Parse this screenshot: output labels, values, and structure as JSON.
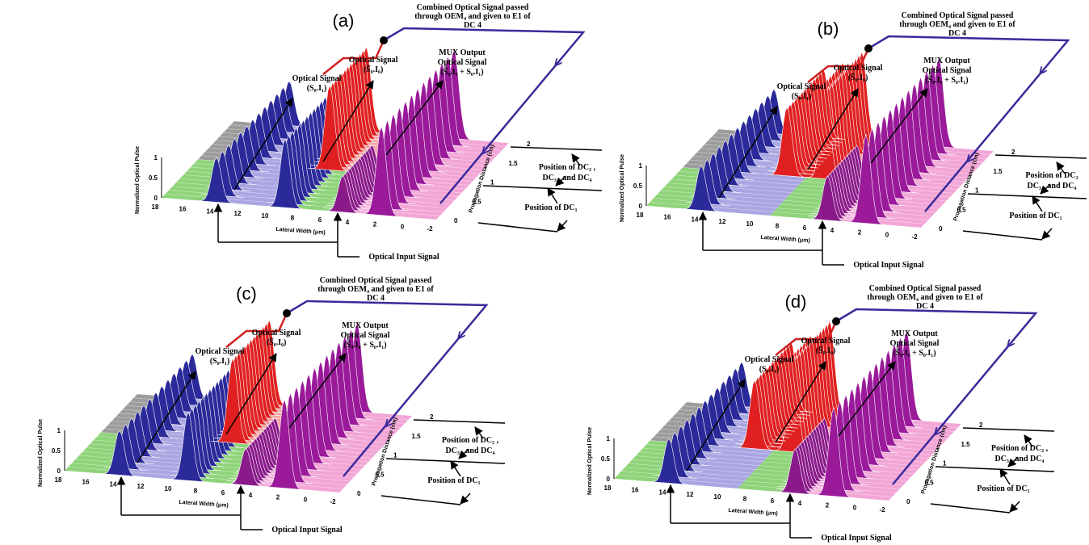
{
  "panels": [
    {
      "label": "(a)",
      "combined": [
        "Combined Optical Signal passed",
        "through OEM₄ and given to E1 of",
        "DC 4"
      ],
      "sig1": [
        "Optical Signal",
        "(S₀.I₁)"
      ],
      "sig0": [
        "Optical Signal",
        "(S̅₀.I₀)"
      ],
      "mux": [
        "MUX Output",
        "Optical Signal",
        "(S̅₀.I₀ + S₀.I₁)"
      ],
      "dc234": [
        "Position of DC₂ ,",
        "DC₃ , and DC₄"
      ],
      "dc1": "Position of DC₁",
      "input": "Optical Input Signal",
      "zlabel": "Normalized Optical Pulse",
      "xlabel": "Lateral Width (μm)",
      "ylabel": "Propagation Distance (cm)",
      "zticks": [
        0,
        0.5,
        1
      ],
      "xticks": [
        18,
        16,
        14,
        12,
        10,
        8,
        6,
        4,
        2,
        0,
        -2
      ],
      "yticks": [
        0,
        0.5,
        1,
        1.5,
        2
      ]
    },
    {
      "label": "(b)",
      "combined": [
        "Combined Optical Signal passed",
        "through OEM₄ and given to E1 of",
        "DC 4"
      ],
      "sig1": [
        "Optical Signal",
        "(S₀.I₁)"
      ],
      "sig0": [
        "Optical Signal",
        "(S̅₀.I₀)"
      ],
      "mux": [
        "MUX Output",
        "Optical Signal",
        "(S̅₀.I₀ + S₀.I₁)"
      ],
      "dc234": [
        "Position of DC₂",
        "DC₃ , and DC₄"
      ],
      "dc1": "Position of DC₁",
      "input": "Optical Input Signal",
      "zlabel": "Normalized Optical Pulse",
      "xlabel": "Lateral Width (μm)",
      "ylabel": "Propagation Distance (cm)",
      "zticks": [
        0,
        0.5,
        1
      ],
      "xticks": [
        18,
        16,
        14,
        12,
        10,
        8,
        6,
        4,
        2,
        0,
        -2
      ],
      "yticks": [
        0,
        0.5,
        1,
        1.5,
        2
      ]
    },
    {
      "label": "(c)",
      "combined": [
        "Combined Optical Signal passed",
        "through OEM₄ and given to E1 of",
        "DC 4"
      ],
      "sig1": [
        "Optical Signal",
        "(S₀.I₁)"
      ],
      "sig0": [
        "Optical Signal",
        "(S̅₀.I₀)"
      ],
      "mux": [
        "MUX Output",
        "Optical Signal",
        "(S̅₀.I₀ + S₀.I₁)"
      ],
      "dc234": [
        "Position of DC₂ ,",
        "DC₃ , and DC₄"
      ],
      "dc1": "Position of DC₁",
      "input": "Optical Input Signal",
      "zlabel": "Normalized Optical Pulse",
      "xlabel": "Lateral Width (μm)",
      "ylabel": "Propagation Distance (cm)",
      "zticks": [
        0,
        0.5,
        1
      ],
      "xticks": [
        18,
        16,
        14,
        12,
        10,
        8,
        6,
        4,
        2,
        0,
        -2
      ],
      "yticks": [
        0,
        0.5,
        1,
        1.5,
        2
      ]
    },
    {
      "label": "(d)",
      "combined": [
        "Combined Optical Signal passed",
        "through OEM₄ and given to E1 of",
        "DC 4"
      ],
      "sig1": [
        "Optical Signal",
        "(S₀.I₁)"
      ],
      "sig0": [
        "Optical Signal",
        "(S̅₀.I₀)"
      ],
      "mux": [
        "MUX Output",
        "Optical Signal",
        "(S̅₀.I₀ + S₀.I₁)"
      ],
      "dc234": [
        "Position of DC₂ ,",
        "DC₃ , and DC₄"
      ],
      "dc1": "Position of DC₁",
      "input": "Optical Input Signal",
      "zlabel": "Normalized Optical Pulse",
      "xlabel": "Lateral Width (μm)",
      "ylabel": "Propagation Distance (cm)",
      "zticks": [
        0,
        0.5,
        1
      ],
      "xticks": [
        18,
        16,
        14,
        12,
        10,
        8,
        6,
        4,
        2,
        0,
        -2
      ],
      "yticks": [
        0,
        0.5,
        1,
        1.5,
        2
      ]
    }
  ]
}
